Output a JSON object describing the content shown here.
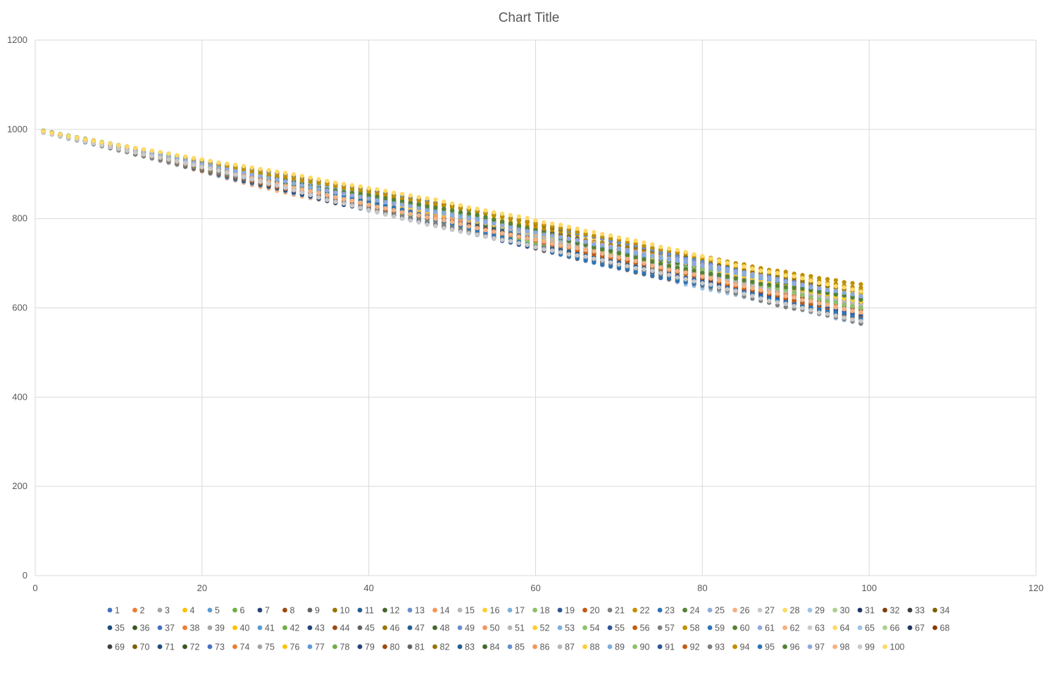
{
  "chart_data": {
    "type": "scatter",
    "title": "Chart Title",
    "xlabel": "",
    "ylabel": "",
    "xlim": [
      0,
      120
    ],
    "ylim": [
      0,
      1200
    ],
    "x_ticks": [
      "0",
      "20",
      "40",
      "60",
      "80",
      "100",
      "120"
    ],
    "y_ticks": [
      "0",
      "200",
      "400",
      "600",
      "800",
      "1000",
      "1200"
    ],
    "grid": true,
    "legend_position": "bottom",
    "x_points": {
      "start": 1,
      "end": 99,
      "step": 1
    },
    "series_count": 100,
    "series_names": [
      "1",
      "2",
      "3",
      "4",
      "5",
      "6",
      "7",
      "8",
      "9",
      "10",
      "11",
      "12",
      "13",
      "14",
      "15",
      "16",
      "17",
      "18",
      "19",
      "20",
      "21",
      "22",
      "23",
      "24",
      "25",
      "26",
      "27",
      "28",
      "29",
      "30",
      "31",
      "32",
      "33",
      "34",
      "35",
      "36",
      "37",
      "38",
      "39",
      "40",
      "41",
      "42",
      "43",
      "44",
      "45",
      "46",
      "47",
      "48",
      "49",
      "50",
      "51",
      "52",
      "53",
      "54",
      "55",
      "56",
      "57",
      "58",
      "59",
      "60",
      "61",
      "62",
      "63",
      "64",
      "65",
      "66",
      "67",
      "68",
      "69",
      "70",
      "71",
      "72",
      "73",
      "74",
      "75",
      "76",
      "77",
      "78",
      "79",
      "80",
      "81",
      "82",
      "83",
      "84",
      "85",
      "86",
      "87",
      "88",
      "89",
      "90",
      "91",
      "92",
      "93",
      "94",
      "95",
      "96",
      "97",
      "98",
      "99",
      "100"
    ],
    "series_start_values": [
      996,
      995,
      994,
      996,
      993,
      997,
      995,
      994,
      993,
      996,
      994,
      995,
      993,
      996,
      994,
      995,
      993,
      997,
      994,
      995,
      994,
      996,
      993,
      995,
      994,
      995,
      996,
      994,
      993,
      997,
      995,
      994,
      995,
      996,
      994,
      993,
      995,
      994,
      996,
      995,
      994,
      993,
      995,
      996,
      994,
      995,
      993,
      996,
      994,
      995,
      996,
      994,
      995,
      993,
      996,
      994,
      995,
      996,
      993,
      995,
      994,
      996,
      995,
      994,
      993,
      995,
      996,
      994,
      995,
      996,
      994,
      993,
      995,
      996,
      994,
      995,
      993,
      996,
      994,
      995,
      996,
      994,
      993,
      995,
      996,
      994,
      995,
      993,
      996,
      994,
      995,
      996,
      994,
      993,
      995,
      996,
      994,
      995,
      993,
      996
    ],
    "series_end_values": [
      612,
      598,
      588,
      640,
      585,
      632,
      604,
      620,
      578,
      626,
      610,
      596,
      584,
      622,
      606,
      636,
      580,
      620,
      614,
      590,
      600,
      644,
      602,
      616,
      596,
      576,
      592,
      632,
      572,
      618,
      626,
      600,
      608,
      612,
      606,
      604,
      580,
      584,
      586,
      632,
      578,
      608,
      616,
      586,
      600,
      622,
      604,
      602,
      578,
      576,
      580,
      630,
      574,
      614,
      608,
      592,
      586,
      644,
      598,
      622,
      620,
      588,
      614,
      624,
      610,
      602,
      584,
      594,
      576,
      636,
      582,
      610,
      620,
      596,
      598,
      612,
      600,
      618,
      584,
      578,
      572,
      634,
      578,
      616,
      628,
      612,
      602,
      618,
      624,
      598,
      582,
      580,
      570,
      638,
      576,
      616,
      630,
      590,
      568,
      640
    ],
    "colors": [
      "#4472c4",
      "#ed7d31",
      "#a5a5a5",
      "#ffc000",
      "#5b9bd5",
      "#70ad47",
      "#264478",
      "#9e480e",
      "#636363",
      "#997300",
      "#255e91",
      "#43682b",
      "#698ed0",
      "#f1975a",
      "#b7b7b7",
      "#ffcd33",
      "#7cafdd",
      "#8cc168",
      "#2f5597",
      "#c55a11",
      "#7f7f7f",
      "#bf9000",
      "#2e75b6",
      "#548235",
      "#8faadc",
      "#f4b183",
      "#c9c9c9",
      "#ffd966",
      "#9dc3e6",
      "#a9d18e",
      "#203864",
      "#843c0c",
      "#3f3f3f",
      "#7f6000",
      "#1f4e79",
      "#385723"
    ]
  }
}
